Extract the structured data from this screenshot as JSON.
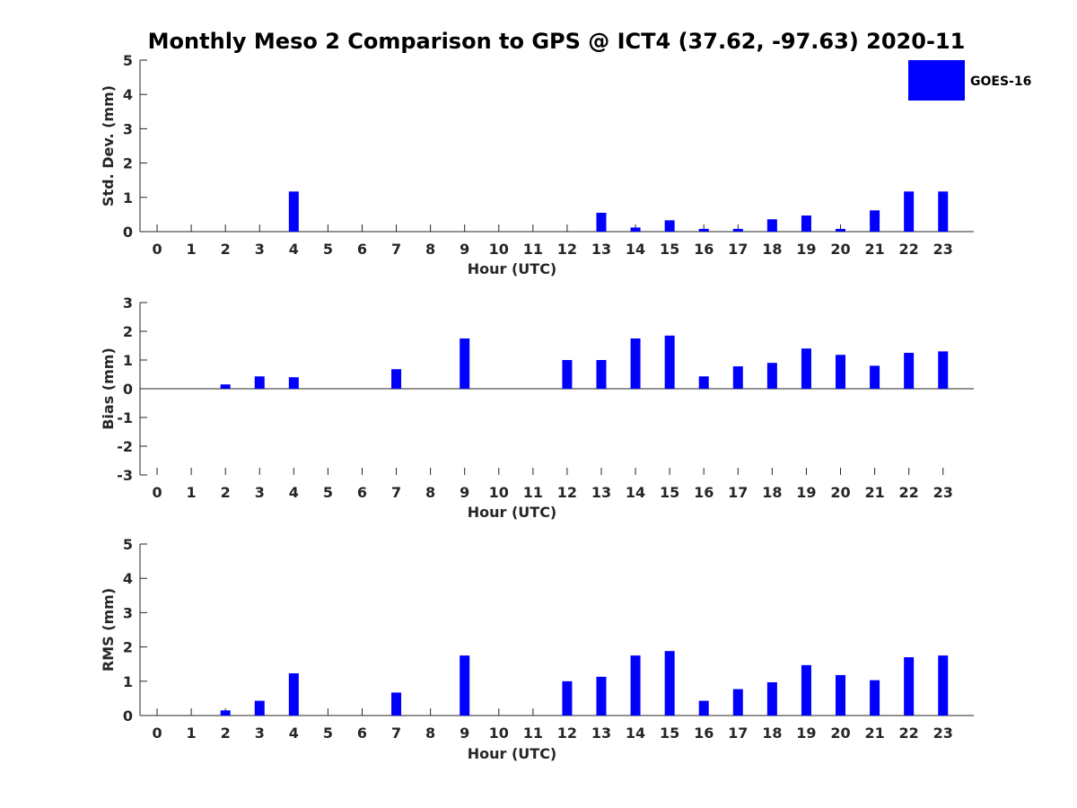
{
  "figure": {
    "title": "Monthly Meso 2 Comparison to GPS @ ICT4 (37.62, -97.63) 2020-11",
    "legend_label": "GOES-16",
    "bar_color": "#0000ff"
  },
  "chart_data": [
    {
      "type": "bar",
      "title": "Monthly Meso 2 Comparison to GPS @ ICT4 (37.62, -97.63) 2020-11",
      "xlabel": "Hour (UTC)",
      "ylabel": "Std. Dev. (mm)",
      "ylim": [
        0,
        5
      ],
      "yticks": [
        "0",
        "1",
        "2",
        "3",
        "4",
        "5"
      ],
      "categories": [
        "0",
        "1",
        "2",
        "3",
        "4",
        "5",
        "6",
        "7",
        "8",
        "9",
        "10",
        "11",
        "12",
        "13",
        "14",
        "15",
        "16",
        "17",
        "18",
        "19",
        "20",
        "21",
        "22",
        "23"
      ],
      "series": [
        {
          "name": "GOES-16",
          "values": [
            0,
            0,
            0,
            0,
            1.17,
            0,
            0,
            0,
            0,
            0,
            0,
            0,
            0,
            0.55,
            0.12,
            0.33,
            0.08,
            0.08,
            0.36,
            0.47,
            0.08,
            0.62,
            1.17,
            1.17
          ]
        }
      ],
      "legend": "top-right",
      "grid": false
    },
    {
      "type": "bar",
      "xlabel": "Hour (UTC)",
      "ylabel": "Bias (mm)",
      "ylim": [
        -3,
        3
      ],
      "yticks": [
        "-3",
        "-2",
        "-1",
        "0",
        "1",
        "2",
        "3"
      ],
      "categories": [
        "0",
        "1",
        "2",
        "3",
        "4",
        "5",
        "6",
        "7",
        "8",
        "9",
        "10",
        "11",
        "12",
        "13",
        "14",
        "15",
        "16",
        "17",
        "18",
        "19",
        "20",
        "21",
        "22",
        "23"
      ],
      "series": [
        {
          "name": "GOES-16",
          "values": [
            0,
            0,
            0.15,
            0.43,
            0.4,
            0,
            0,
            0.68,
            0,
            1.75,
            0,
            0,
            1.0,
            1.0,
            1.75,
            1.85,
            0.43,
            0.78,
            0.9,
            1.4,
            1.18,
            0.8,
            1.25,
            1.3
          ]
        }
      ],
      "grid": false
    },
    {
      "type": "bar",
      "xlabel": "Hour (UTC)",
      "ylabel": "RMS (mm)",
      "ylim": [
        0,
        5
      ],
      "yticks": [
        "0",
        "1",
        "2",
        "3",
        "4",
        "5"
      ],
      "categories": [
        "0",
        "1",
        "2",
        "3",
        "4",
        "5",
        "6",
        "7",
        "8",
        "9",
        "10",
        "11",
        "12",
        "13",
        "14",
        "15",
        "16",
        "17",
        "18",
        "19",
        "20",
        "21",
        "22",
        "23"
      ],
      "series": [
        {
          "name": "GOES-16",
          "values": [
            0,
            0,
            0.15,
            0.43,
            1.23,
            0,
            0,
            0.67,
            0,
            1.75,
            0,
            0,
            1.0,
            1.13,
            1.75,
            1.88,
            0.43,
            0.77,
            0.97,
            1.47,
            1.18,
            1.03,
            1.7,
            1.75
          ]
        }
      ],
      "grid": false
    }
  ]
}
